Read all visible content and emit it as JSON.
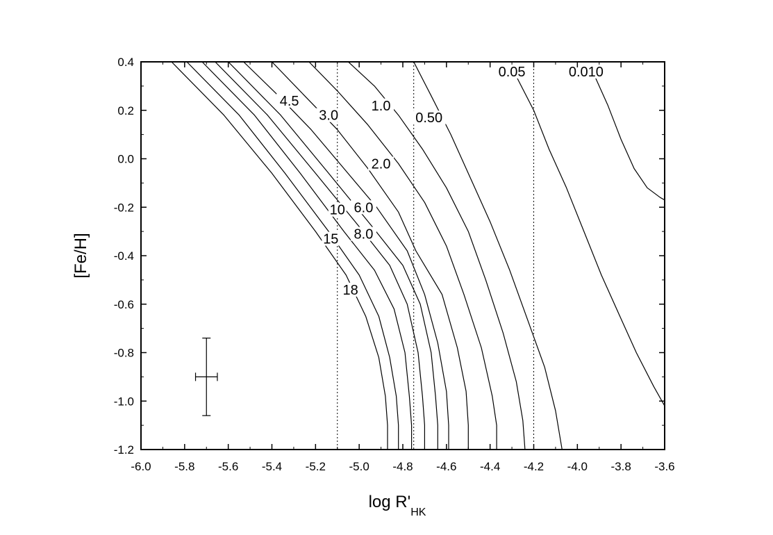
{
  "chart_data": {
    "type": "line",
    "title": "",
    "xlabel": {
      "main": "log R'",
      "sub": "HK"
    },
    "ylabel": "[Fe/H]",
    "xlim": [
      -6.0,
      -3.6
    ],
    "ylim": [
      -1.2,
      0.4
    ],
    "xticks": [
      "-6.0",
      "-5.8",
      "-5.6",
      "-5.4",
      "-5.2",
      "-5.0",
      "-4.8",
      "-4.6",
      "-4.4",
      "-4.2",
      "-4.0",
      "-3.8",
      "-3.6"
    ],
    "yticks": [
      "-1.2",
      "-1.0",
      "-0.8",
      "-0.6",
      "-0.4",
      "-0.2",
      "0.0",
      "0.2",
      "0.4"
    ],
    "grid": false,
    "reference_lines_x": [
      -5.1,
      -4.75,
      -4.2
    ],
    "series": [
      {
        "label": "18",
        "label_pos": [
          -5.04,
          -0.54
        ],
        "points": [
          [
            -5.86,
            0.4
          ],
          [
            -5.62,
            0.18
          ],
          [
            -5.4,
            -0.06
          ],
          [
            -5.2,
            -0.3
          ],
          [
            -5.06,
            -0.48
          ],
          [
            -4.97,
            -0.65
          ],
          [
            -4.91,
            -0.82
          ],
          [
            -4.88,
            -0.98
          ],
          [
            -4.87,
            -1.1
          ],
          [
            -4.87,
            -1.2
          ]
        ]
      },
      {
        "label": "15",
        "label_pos": [
          -5.13,
          -0.33
        ],
        "points": [
          [
            -5.79,
            0.4
          ],
          [
            -5.55,
            0.18
          ],
          [
            -5.34,
            -0.06
          ],
          [
            -5.14,
            -0.3
          ],
          [
            -5.0,
            -0.48
          ],
          [
            -4.91,
            -0.65
          ],
          [
            -4.86,
            -0.82
          ],
          [
            -4.83,
            -0.98
          ],
          [
            -4.82,
            -1.1
          ],
          [
            -4.82,
            -1.2
          ]
        ]
      },
      {
        "label": "10",
        "label_pos": [
          -5.1,
          -0.21
        ],
        "points": [
          [
            -5.72,
            0.4
          ],
          [
            -5.48,
            0.18
          ],
          [
            -5.27,
            -0.06
          ],
          [
            -5.07,
            -0.3
          ],
          [
            -4.93,
            -0.46
          ],
          [
            -4.84,
            -0.62
          ],
          [
            -4.79,
            -0.8
          ],
          [
            -4.77,
            -0.98
          ],
          [
            -4.76,
            -1.1
          ],
          [
            -4.76,
            -1.2
          ]
        ]
      },
      {
        "label": "8.0",
        "label_pos": [
          -4.98,
          -0.31
        ],
        "points": [
          [
            -5.66,
            0.4
          ],
          [
            -5.42,
            0.18
          ],
          [
            -5.2,
            -0.06
          ],
          [
            -5.0,
            -0.28
          ],
          [
            -4.86,
            -0.44
          ],
          [
            -4.78,
            -0.6
          ],
          [
            -4.73,
            -0.8
          ],
          [
            -4.71,
            -0.98
          ],
          [
            -4.7,
            -1.1
          ],
          [
            -4.7,
            -1.2
          ]
        ]
      },
      {
        "label": "6.0",
        "label_pos": [
          -4.98,
          -0.2
        ],
        "points": [
          [
            -5.6,
            0.4
          ],
          [
            -5.36,
            0.18
          ],
          [
            -5.14,
            -0.06
          ],
          [
            -4.94,
            -0.28
          ],
          [
            -4.8,
            -0.44
          ],
          [
            -4.72,
            -0.6
          ],
          [
            -4.67,
            -0.8
          ],
          [
            -4.65,
            -0.98
          ],
          [
            -4.64,
            -1.1
          ],
          [
            -4.64,
            -1.2
          ]
        ]
      },
      {
        "label": "4.5",
        "label_pos": [
          -5.32,
          0.24
        ],
        "points": [
          [
            -5.53,
            0.4
          ],
          [
            -5.37,
            0.26
          ],
          [
            -5.22,
            0.12
          ],
          [
            -5.07,
            -0.04
          ],
          [
            -4.92,
            -0.2
          ],
          [
            -4.78,
            -0.38
          ],
          [
            -4.7,
            -0.56
          ],
          [
            -4.64,
            -0.76
          ],
          [
            -4.6,
            -0.96
          ],
          [
            -4.59,
            -1.1
          ],
          [
            -4.59,
            -1.2
          ]
        ]
      },
      {
        "label": "3.0",
        "label_pos": [
          -5.14,
          0.18
        ],
        "points": [
          [
            -5.4,
            0.4
          ],
          [
            -5.25,
            0.26
          ],
          [
            -5.1,
            0.12
          ],
          [
            -4.96,
            -0.04
          ],
          [
            -4.82,
            -0.22
          ],
          [
            -4.74,
            -0.38
          ],
          [
            -4.62,
            -0.56
          ],
          [
            -4.55,
            -0.78
          ],
          [
            -4.51,
            -0.96
          ],
          [
            -4.5,
            -1.1
          ],
          [
            -4.5,
            -1.2
          ]
        ]
      },
      {
        "label": "2.0",
        "label_pos": [
          -4.9,
          -0.02
        ],
        "points": [
          [
            -5.23,
            0.4
          ],
          [
            -5.1,
            0.28
          ],
          [
            -4.96,
            0.14
          ],
          [
            -4.82,
            -0.02
          ],
          [
            -4.7,
            -0.18
          ],
          [
            -4.6,
            -0.36
          ],
          [
            -4.52,
            -0.56
          ],
          [
            -4.44,
            -0.78
          ],
          [
            -4.39,
            -0.98
          ],
          [
            -4.37,
            -1.1
          ],
          [
            -4.37,
            -1.2
          ]
        ]
      },
      {
        "label": "1.0",
        "label_pos": [
          -4.9,
          0.22
        ],
        "points": [
          [
            -5.05,
            0.4
          ],
          [
            -4.93,
            0.3
          ],
          [
            -4.82,
            0.18
          ],
          [
            -4.71,
            0.04
          ],
          [
            -4.6,
            -0.12
          ],
          [
            -4.5,
            -0.3
          ],
          [
            -4.42,
            -0.5
          ],
          [
            -4.34,
            -0.72
          ],
          [
            -4.28,
            -0.92
          ],
          [
            -4.25,
            -1.08
          ],
          [
            -4.24,
            -1.2
          ]
        ]
      },
      {
        "label": "0.50",
        "label_pos": [
          -4.68,
          0.17
        ],
        "points": [
          [
            -4.75,
            0.4
          ],
          [
            -4.67,
            0.26
          ],
          [
            -4.58,
            0.1
          ],
          [
            -4.49,
            -0.08
          ],
          [
            -4.4,
            -0.26
          ],
          [
            -4.31,
            -0.46
          ],
          [
            -4.23,
            -0.66
          ],
          [
            -4.15,
            -0.86
          ],
          [
            -4.1,
            -1.04
          ],
          [
            -4.07,
            -1.2
          ]
        ]
      },
      {
        "label": "0.05",
        "label_pos": [
          -4.3,
          0.36
        ],
        "points": [
          [
            -4.28,
            0.34
          ],
          [
            -4.2,
            0.2
          ],
          [
            -4.13,
            0.04
          ],
          [
            -4.05,
            -0.12
          ],
          [
            -3.97,
            -0.3
          ],
          [
            -3.89,
            -0.48
          ],
          [
            -3.81,
            -0.64
          ],
          [
            -3.73,
            -0.8
          ],
          [
            -3.65,
            -0.94
          ],
          [
            -3.6,
            -1.02
          ]
        ]
      },
      {
        "label": "0.010",
        "label_pos": [
          -3.96,
          0.36
        ],
        "points": [
          [
            -3.92,
            0.34
          ],
          [
            -3.86,
            0.22
          ],
          [
            -3.8,
            0.08
          ],
          [
            -3.74,
            -0.04
          ],
          [
            -3.68,
            -0.12
          ],
          [
            -3.62,
            -0.16
          ],
          [
            -3.6,
            -0.17
          ]
        ]
      }
    ],
    "error_bar": {
      "x": -5.7,
      "y": -0.9,
      "x_minus": 0.05,
      "x_plus": 0.05,
      "y_minus": 0.16,
      "y_plus": 0.16
    }
  }
}
